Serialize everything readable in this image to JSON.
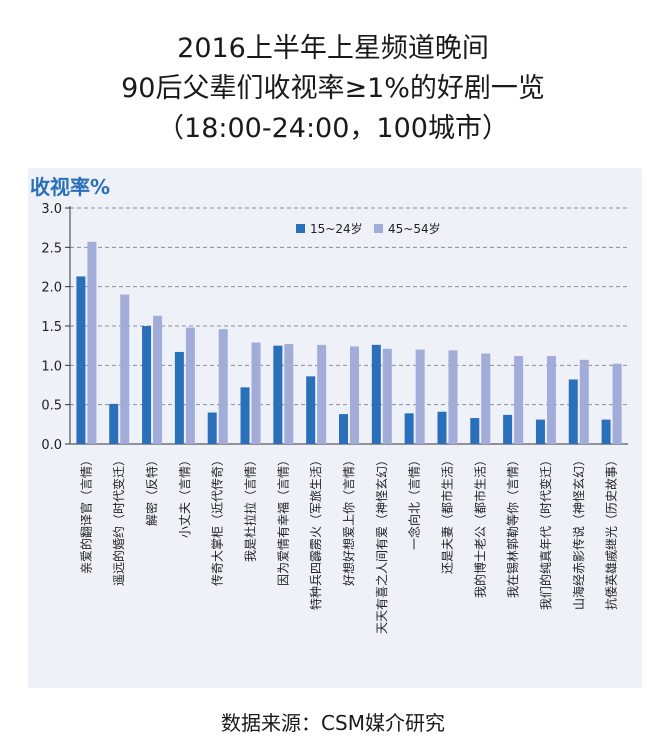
{
  "header": {
    "line1": "2016上半年上星频道晚间",
    "line2": "90后父辈们收视率≥1%的好剧一览",
    "line3": "（18:00-24:00，100城市）"
  },
  "footer": {
    "source": "数据来源：CSM媒介研究"
  },
  "chart_data": {
    "type": "bar",
    "title": "",
    "ylabel": "收视率%",
    "xlabel": "",
    "ylim": [
      0,
      3.0
    ],
    "yticks": [
      "0.0",
      "0.5",
      "1.0",
      "1.5",
      "2.0",
      "2.5",
      "3.0"
    ],
    "grid": true,
    "legend_position": "top-center",
    "categories": [
      "亲爱的翻译官（言情）",
      "遥远的婚约（时代变迁）",
      "解密（反特）",
      "小丈夫（言情）",
      "传奇大掌柜（近代传奇）",
      "我是杜拉拉（言情）",
      "因为爱情有幸福（言情）",
      "特种兵四霹雳火（军旅生活）",
      "好想好想爱上你（言情）",
      "天天有喜之人间有爱（神怪玄幻）",
      "一念向北（言情）",
      "还是夫妻（都市生活）",
      "我的博士老公（都市生活）",
      "我在锡林郭勒等你（言情）",
      "我们的纯真年代（时代变迁）",
      "山海经赤影传说（神怪玄幻）",
      "抗倭英雄戚继光（历史故事）"
    ],
    "series": [
      {
        "name": "15~24岁",
        "color": "#2a6fba",
        "values": [
          2.13,
          0.51,
          1.5,
          1.17,
          0.4,
          0.72,
          1.25,
          0.86,
          0.38,
          1.26,
          0.39,
          0.41,
          0.33,
          0.37,
          0.31,
          0.82,
          0.31
        ]
      },
      {
        "name": "45~54岁",
        "color": "#a2acd8",
        "values": [
          2.57,
          1.9,
          1.63,
          1.48,
          1.46,
          1.29,
          1.27,
          1.26,
          1.24,
          1.21,
          1.2,
          1.19,
          1.15,
          1.12,
          1.12,
          1.07,
          1.02
        ]
      }
    ]
  }
}
